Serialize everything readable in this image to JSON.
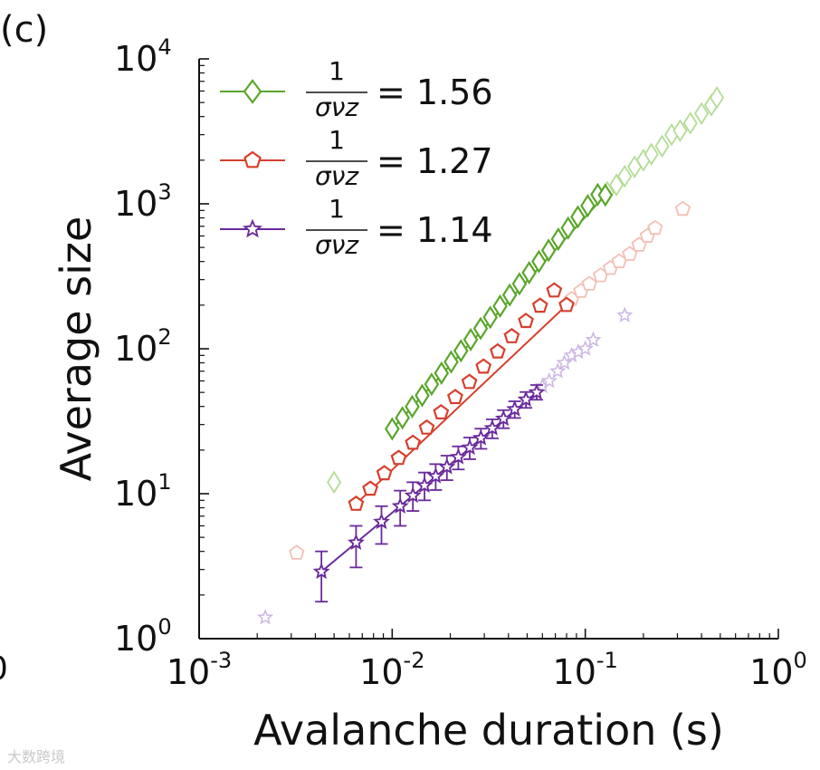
{
  "panel_label": "(c)",
  "edge_fragment": "0",
  "watermark": "大数跨境",
  "chart_data": {
    "type": "scatter",
    "xscale": "log",
    "yscale": "log",
    "xlim": [
      0.001,
      1
    ],
    "ylim": [
      1,
      10000
    ],
    "xlabel": "Avalanche duration (s)",
    "ylabel": "Average size",
    "x_ticks": [
      {
        "value": 0.001,
        "base": "10",
        "exp": "-3"
      },
      {
        "value": 0.01,
        "base": "10",
        "exp": "-2"
      },
      {
        "value": 0.1,
        "base": "10",
        "exp": "-1"
      },
      {
        "value": 1,
        "base": "10",
        "exp": "0"
      }
    ],
    "y_ticks": [
      {
        "value": 1,
        "base": "10",
        "exp": "0"
      },
      {
        "value": 10,
        "base": "10",
        "exp": "1"
      },
      {
        "value": 100,
        "base": "10",
        "exp": "2"
      },
      {
        "value": 1000,
        "base": "10",
        "exp": "3"
      },
      {
        "value": 10000,
        "base": "10",
        "exp": "4"
      }
    ],
    "legend_position": "top-left",
    "series": [
      {
        "name": "1/σνz = 1.56",
        "frac_num": "1",
        "frac_den": "σνz",
        "value_text": "= 1.56",
        "color": "#5aa62a",
        "faded_color": "#b4dc95",
        "marker": "diamond",
        "fit_x": [
          0.01,
          0.127
        ],
        "fit_y": [
          28,
          1150
        ],
        "x": [
          0.01,
          0.0113,
          0.0127,
          0.0143,
          0.016,
          0.018,
          0.0202,
          0.0227,
          0.0255,
          0.0287,
          0.0322,
          0.0362,
          0.0406,
          0.0456,
          0.0512,
          0.0575,
          0.0646,
          0.0725,
          0.0815,
          0.0915,
          0.103,
          0.116,
          0.127
        ],
        "y": [
          28,
          33.4,
          39.9,
          47.6,
          56.9,
          67.9,
          81.1,
          96.8,
          115.6,
          138.0,
          164.8,
          196.8,
          235.0,
          280.6,
          335.0,
          400.0,
          477.6,
          570.3,
          680.9,
          813.0,
          970.7,
          1159,
          1150
        ],
        "faded_x": [
          0.005,
          0.13,
          0.145,
          0.16,
          0.18,
          0.2,
          0.22,
          0.25,
          0.28,
          0.31,
          0.35,
          0.4,
          0.45,
          0.48
        ],
        "faded_y": [
          12,
          1200,
          1350,
          1550,
          1800,
          2000,
          2200,
          2500,
          3000,
          3200,
          3600,
          4200,
          4800,
          5400
        ]
      },
      {
        "name": "1/σνz = 1.27",
        "frac_num": "1",
        "frac_den": "σνz",
        "value_text": "= 1.27",
        "color": "#d6402e",
        "faded_color": "#f4bfb6",
        "marker": "pentagon",
        "fit_x": [
          0.0065,
          0.08
        ],
        "fit_y": [
          8.5,
          200
        ],
        "x": [
          0.0065,
          0.0077,
          0.0091,
          0.0108,
          0.0128,
          0.0151,
          0.0179,
          0.0212,
          0.0251,
          0.0297,
          0.0352,
          0.0416,
          0.0493,
          0.0583,
          0.069,
          0.08
        ],
        "y": [
          8.5,
          10.8,
          13.8,
          17.6,
          22.4,
          28.5,
          36.3,
          46.3,
          58.9,
          75.1,
          95.6,
          121.8,
          155.1,
          197.6,
          251.7,
          200
        ],
        "faded_x": [
          0.0032,
          0.085,
          0.095,
          0.105,
          0.12,
          0.135,
          0.15,
          0.17,
          0.19,
          0.21,
          0.23,
          0.32
        ],
        "faded_y": [
          3.9,
          220,
          250,
          280,
          320,
          360,
          400,
          450,
          520,
          600,
          680,
          920
        ]
      },
      {
        "name": "1/σνz = 1.14",
        "frac_num": "1",
        "frac_den": "σνz",
        "value_text": "= 1.14",
        "color": "#6a2a9c",
        "faded_color": "#cdb6e3",
        "marker": "star",
        "fit_x": [
          0.0043,
          0.056
        ],
        "fit_y": [
          2.9,
          50
        ],
        "x": [
          0.0043,
          0.0065,
          0.0088,
          0.011,
          0.0128,
          0.0147,
          0.0168,
          0.0192,
          0.022,
          0.0252,
          0.0288,
          0.033,
          0.0377,
          0.0431,
          0.0493,
          0.056
        ],
        "y": [
          2.9,
          4.6,
          6.4,
          8.2,
          9.7,
          11.4,
          13.2,
          15.3,
          17.9,
          20.8,
          24.2,
          28.3,
          32.9,
          38.3,
          44.6,
          50
        ],
        "err_low": [
          1.8,
          3.1,
          4.5,
          6.0,
          7.6,
          9.0,
          10.6,
          12.4,
          14.7,
          17.3,
          20.4,
          24.1,
          28.3,
          33.3,
          39.1,
          44.5
        ],
        "err_high": [
          4.0,
          6.0,
          8.2,
          10.5,
          12.0,
          14.0,
          16.0,
          18.3,
          21.2,
          24.4,
          28.1,
          32.6,
          37.7,
          43.4,
          50.3,
          56.2
        ],
        "faded_x": [
          0.0022,
          0.06,
          0.065,
          0.072,
          0.078,
          0.085,
          0.092,
          0.1,
          0.11,
          0.16
        ],
        "faded_y": [
          1.4,
          55,
          60,
          70,
          80,
          90,
          95,
          100,
          115,
          170
        ]
      }
    ]
  }
}
